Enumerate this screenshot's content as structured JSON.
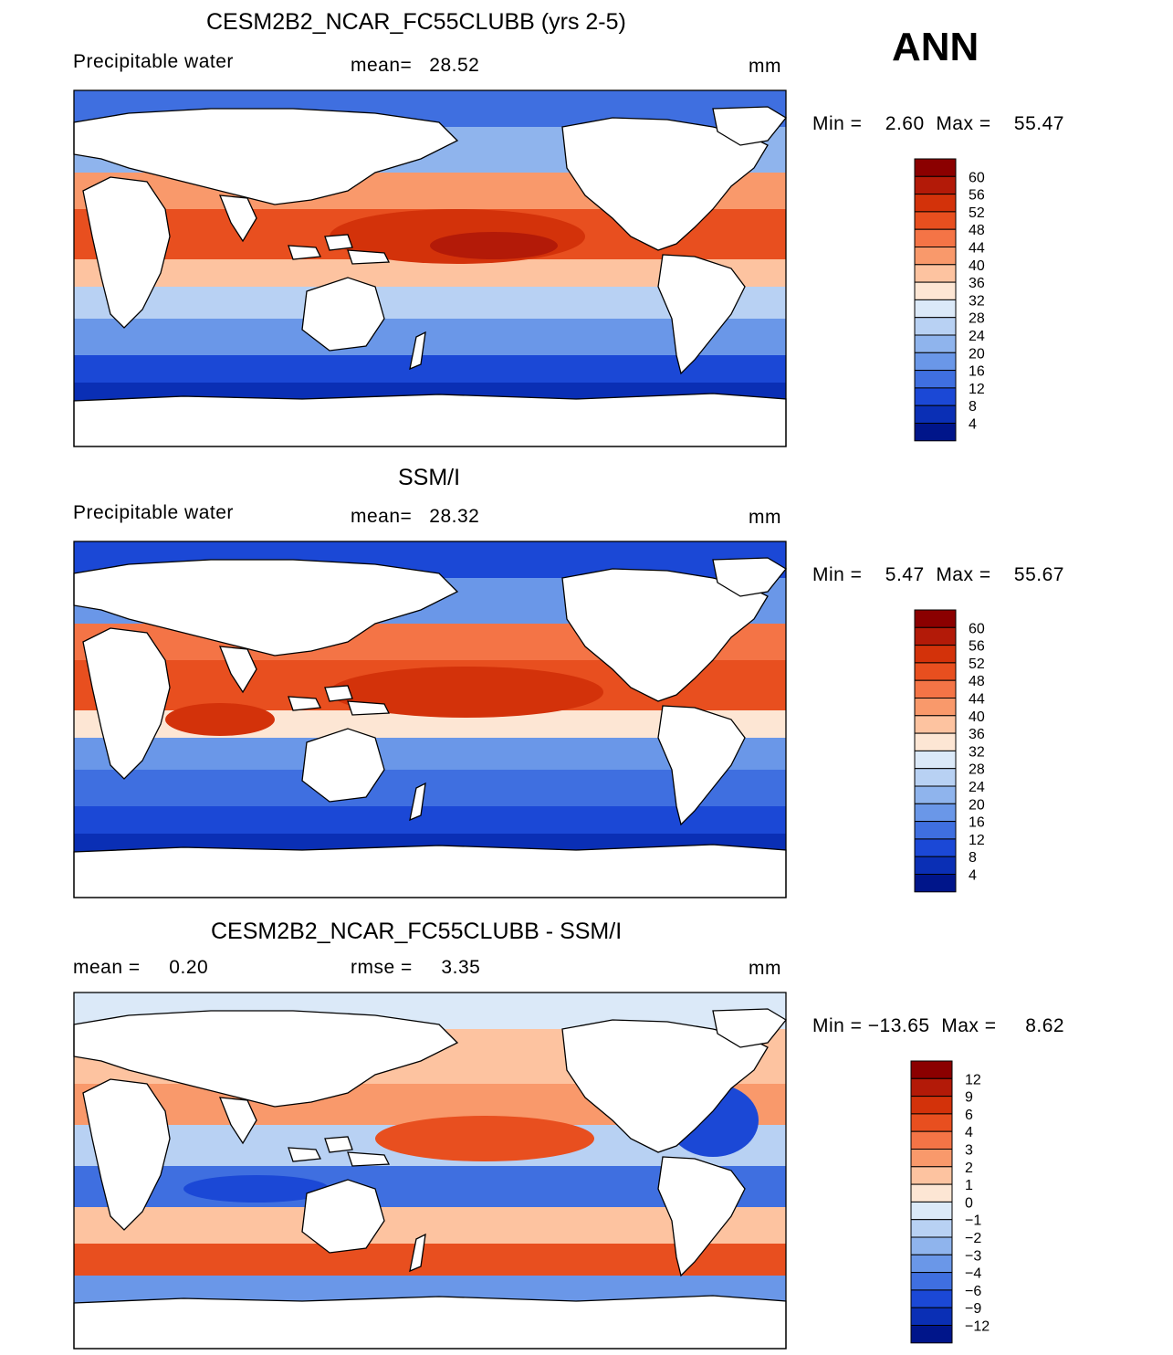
{
  "season": "ANN",
  "panels": [
    {
      "title": "CESM2B2_NCAR_FC55CLUBB (yrs 2-5)",
      "left_label": "Precipitable water",
      "center_label": "mean=   28.52",
      "units": "mm",
      "minmax": "Min =    2.60  Max =    55.47",
      "min": 2.6,
      "max": 55.47,
      "mean": 28.52,
      "colorbar_labels": [
        "60",
        "56",
        "52",
        "48",
        "44",
        "40",
        "36",
        "32",
        "28",
        "24",
        "20",
        "16",
        "12",
        "8",
        "4"
      ]
    },
    {
      "title": "SSM/I",
      "left_label": "Precipitable water",
      "center_label": "mean=   28.32",
      "units": "mm",
      "minmax": "Min =    5.47  Max =    55.67",
      "min": 5.47,
      "max": 55.67,
      "mean": 28.32,
      "colorbar_labels": [
        "60",
        "56",
        "52",
        "48",
        "44",
        "40",
        "36",
        "32",
        "28",
        "24",
        "20",
        "16",
        "12",
        "8",
        "4"
      ]
    },
    {
      "title": "CESM2B2_NCAR_FC55CLUBB - SSM/I",
      "left_label": "mean =     0.20",
      "center_label": "rmse =     3.35",
      "units": "mm",
      "minmax": "Min = −13.65  Max =     8.62",
      "min": -13.65,
      "max": 8.62,
      "mean": 0.2,
      "rmse": 3.35,
      "colorbar_labels": [
        "12",
        "9",
        "6",
        "4",
        "3",
        "2",
        "1",
        "0",
        "−1",
        "−2",
        "−3",
        "−4",
        "−6",
        "−9",
        "−12"
      ]
    }
  ],
  "colors": {
    "abs_scale": [
      "#8b0000",
      "#b31a08",
      "#d3320a",
      "#e84f1f",
      "#f47446",
      "#f9996b",
      "#fdc3a0",
      "#fde6d4",
      "#dbe9f8",
      "#b8d1f3",
      "#8fb4ed",
      "#6a97e8",
      "#3f6fe0",
      "#1b48d6",
      "#0a2fb5",
      "#00158a"
    ],
    "diff_scale": [
      "#8b0000",
      "#b31a08",
      "#d3320a",
      "#e84f1f",
      "#f47446",
      "#f9996b",
      "#fdc3a0",
      "#fde6d4",
      "#dbe9f8",
      "#b8d1f3",
      "#8fb4ed",
      "#6a97e8",
      "#3f6fe0",
      "#1b48d6",
      "#0a2fb5",
      "#00158a"
    ]
  }
}
